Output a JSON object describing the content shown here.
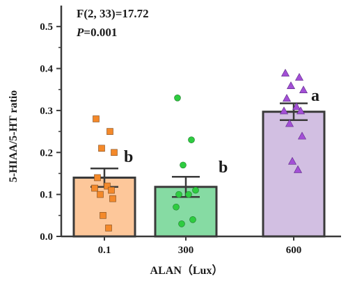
{
  "chart_data": {
    "type": "bar",
    "categories": [
      "0.1",
      "300",
      "600"
    ],
    "values": [
      0.14,
      0.118,
      0.297
    ],
    "error_sem": [
      0.022,
      0.024,
      0.02
    ],
    "significance": [
      "b",
      "b",
      "a"
    ],
    "points": [
      [
        0.28,
        0.25,
        0.21,
        0.2,
        0.14,
        0.12,
        0.115,
        0.11,
        0.1,
        0.09,
        0.05,
        0.02
      ],
      [
        0.33,
        0.23,
        0.17,
        0.11,
        0.1,
        0.1,
        0.07,
        0.04,
        0.03
      ],
      [
        0.39,
        0.38,
        0.36,
        0.35,
        0.33,
        0.31,
        0.3,
        0.3,
        0.27,
        0.24,
        0.18,
        0.16
      ]
    ],
    "xlabel": "ALAN（Lux）",
    "ylabel": "5-HIAA/5-HT ratio",
    "ylim": [
      0,
      0.55
    ],
    "yticks": [
      "0.0",
      "0.1",
      "0.2",
      "0.3",
      "0.4",
      "0.5"
    ],
    "stat_line1": "F(2, 33)=17.72",
    "stat_line2_prefix": "P",
    "stat_line2_value": "=0.001",
    "colors": {
      "bar_fills": [
        "#fdc79a",
        "#86dba3",
        "#d2bfe2"
      ],
      "point_fills": [
        "#f4892a",
        "#2ecc40",
        "#a34fd6"
      ],
      "point_markers": [
        "square",
        "circle",
        "triangle"
      ],
      "outline": "#3a3a3a"
    },
    "grid": false
  }
}
